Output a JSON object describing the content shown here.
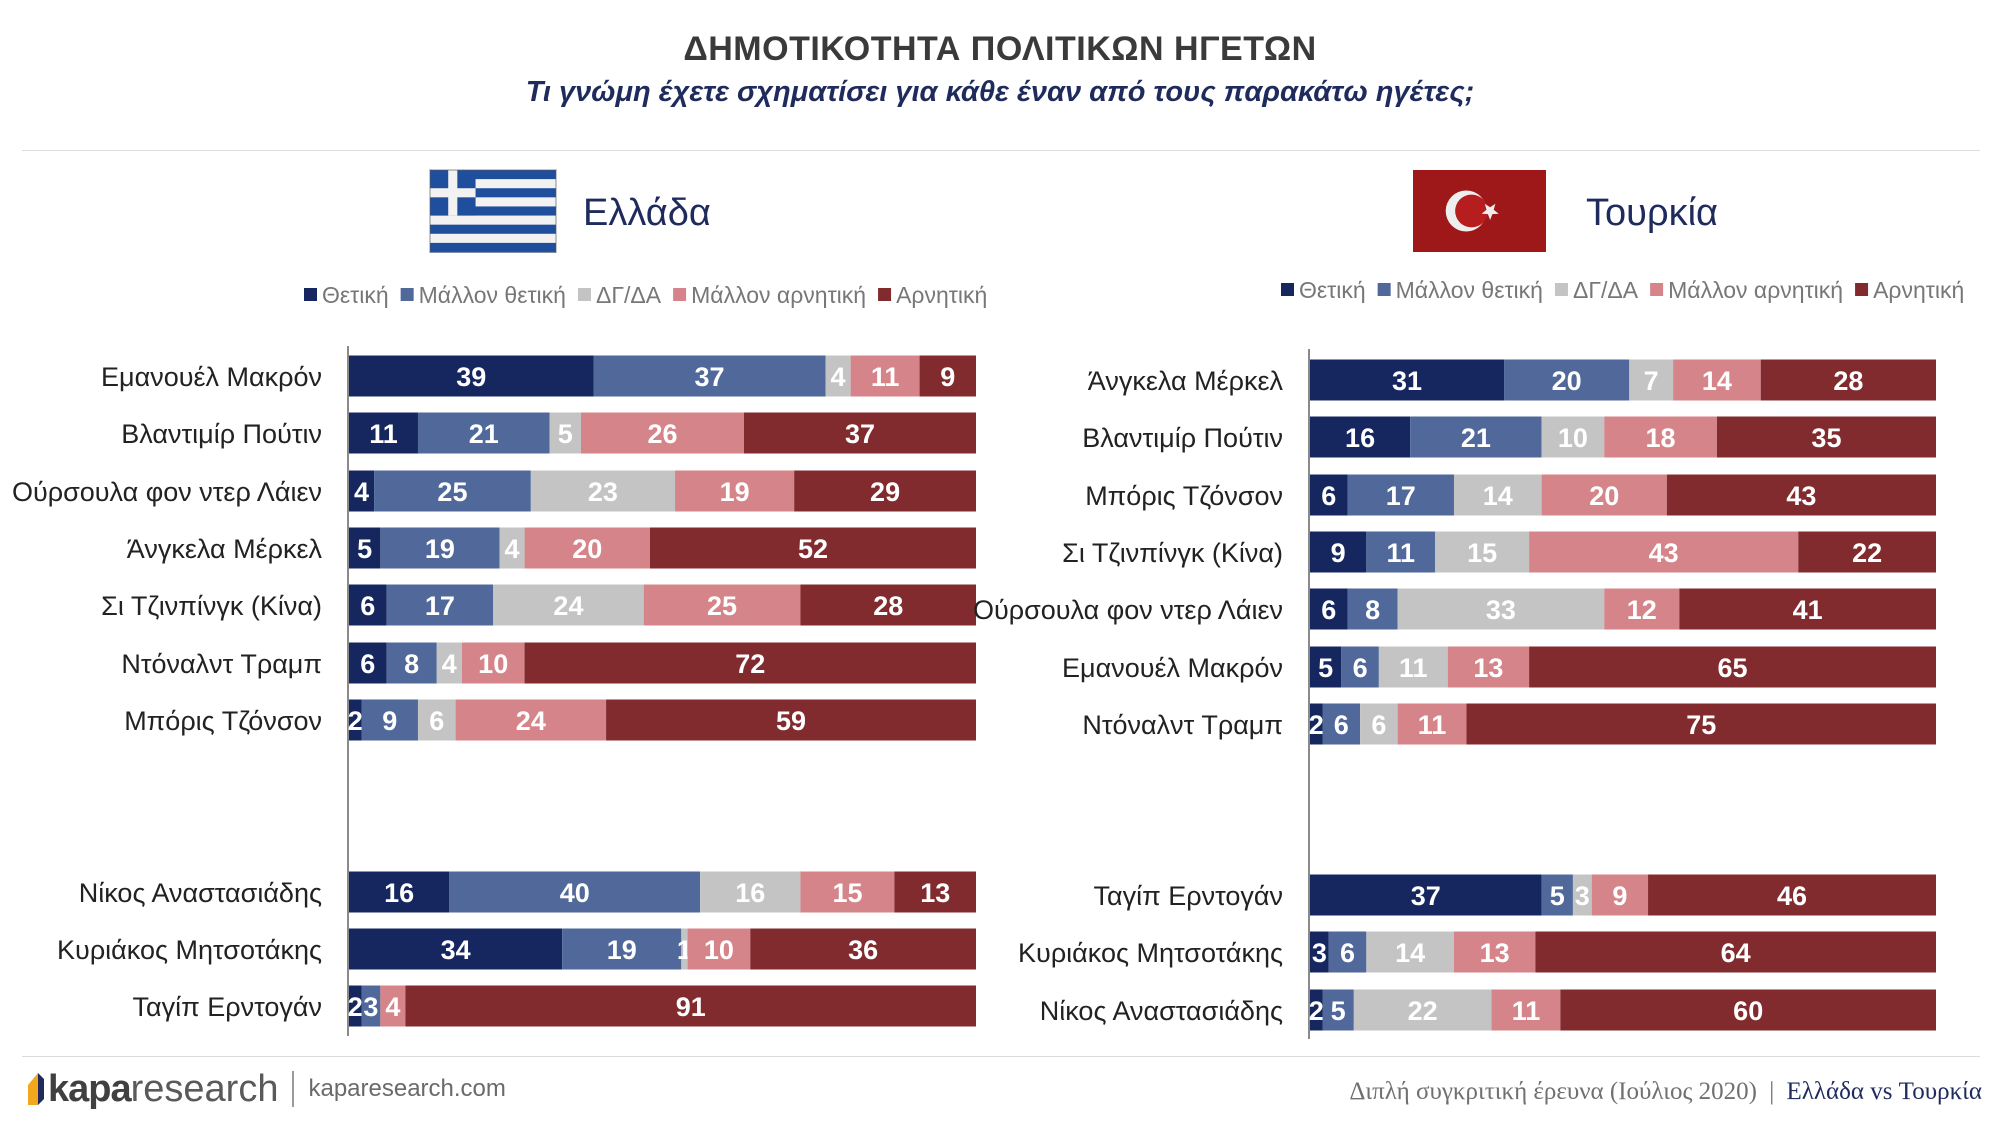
{
  "title": "ΔΗΜΟΤΙΚΟΤΗΤΑ ΠΟΛΙΤΙΚΩΝ ΗΓΕΤΩΝ",
  "subtitle": "Τι γνώμη έχετε σχηματίσει για κάθε έναν από τους παρακάτω ηγέτες;",
  "legend": [
    "Θετική",
    "Μάλλον θετική",
    "ΔΓ/ΔΑ",
    "Μάλλον αρνητική",
    "Αρνητική"
  ],
  "colors": [
    "#16275f",
    "#50699a",
    "#c4c4c4",
    "#d58589",
    "#822b2e"
  ],
  "footer": {
    "logo_kapa": "kapa",
    "logo_research": "research",
    "url": "kaparesearch.com",
    "survey": "Διπλή συγκριτική έρευνα (Ιούλιος 2020)",
    "separator": "|",
    "comparison": "Ελλάδα vs Τουρκία"
  },
  "chart_data": [
    {
      "type": "bar",
      "stacked": true,
      "orientation": "horizontal",
      "title": "Ελλάδα",
      "flag": "greece-flag",
      "legend_position": "top",
      "series": [
        "Θετική",
        "Μάλλον θετική",
        "ΔΓ/ΔΑ",
        "Μάλλον αρνητική",
        "Αρνητική"
      ],
      "groups": [
        [
          {
            "label": "Εμανουέλ Μακρόν",
            "values": [
              39,
              37,
              4,
              11,
              9
            ]
          },
          {
            "label": "Βλαντιμίρ Πούτιν",
            "values": [
              11,
              21,
              5,
              26,
              37
            ]
          },
          {
            "label": "Ούρσουλα φον ντερ Λάιεν",
            "values": [
              4,
              25,
              23,
              19,
              29
            ]
          },
          {
            "label": "Άνγκελα Μέρκελ",
            "values": [
              5,
              19,
              4,
              20,
              52
            ]
          },
          {
            "label": "Σι Τζινπίνγκ (Κίνα)",
            "values": [
              6,
              17,
              24,
              25,
              28
            ]
          },
          {
            "label": "Ντόναλντ Τραμπ",
            "values": [
              6,
              8,
              4,
              10,
              72
            ]
          },
          {
            "label": "Μπόρις Τζόνσον",
            "values": [
              2,
              9,
              6,
              24,
              59
            ]
          }
        ],
        [
          {
            "label": "Νίκος Αναστασιάδης",
            "values": [
              16,
              40,
              16,
              15,
              13
            ]
          },
          {
            "label": "Κυριάκος Μητσοτάκης",
            "values": [
              34,
              19,
              1,
              10,
              36
            ]
          },
          {
            "label": "Ταγίπ Ερντογάν",
            "values": [
              2,
              3,
              0,
              4,
              91
            ]
          }
        ]
      ]
    },
    {
      "type": "bar",
      "stacked": true,
      "orientation": "horizontal",
      "title": "Τουρκία",
      "flag": "turkey-flag",
      "legend_position": "top",
      "series": [
        "Θετική",
        "Μάλλον θετική",
        "ΔΓ/ΔΑ",
        "Μάλλον αρνητική",
        "Αρνητική"
      ],
      "groups": [
        [
          {
            "label": "Άνγκελα Μέρκελ",
            "values": [
              31,
              20,
              7,
              14,
              28
            ]
          },
          {
            "label": "Βλαντιμίρ Πούτιν",
            "values": [
              16,
              21,
              10,
              18,
              35
            ]
          },
          {
            "label": "Μπόρις Τζόνσον",
            "values": [
              6,
              17,
              14,
              20,
              43
            ]
          },
          {
            "label": "Σι Τζινπίνγκ (Κίνα)",
            "values": [
              9,
              11,
              15,
              43,
              22
            ]
          },
          {
            "label": "Ούρσουλα φον ντερ Λάιεν",
            "values": [
              6,
              8,
              33,
              12,
              41
            ]
          },
          {
            "label": "Εμανουέλ Μακρόν",
            "values": [
              5,
              6,
              11,
              13,
              65
            ]
          },
          {
            "label": "Ντόναλντ Τραμπ",
            "values": [
              2,
              6,
              6,
              11,
              75
            ]
          }
        ],
        [
          {
            "label": "Ταγίπ Ερντογάν",
            "values": [
              37,
              5,
              3,
              9,
              46
            ]
          },
          {
            "label": "Κυριάκος Μητσοτάκης",
            "values": [
              3,
              6,
              14,
              13,
              64
            ]
          },
          {
            "label": "Νίκος Αναστασιάδης",
            "values": [
              2,
              5,
              22,
              11,
              60
            ]
          }
        ]
      ]
    }
  ]
}
